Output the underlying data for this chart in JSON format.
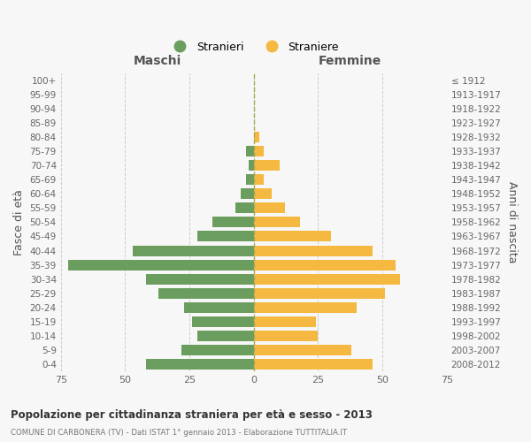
{
  "age_groups": [
    "0-4",
    "5-9",
    "10-14",
    "15-19",
    "20-24",
    "25-29",
    "30-34",
    "35-39",
    "40-44",
    "45-49",
    "50-54",
    "55-59",
    "60-64",
    "65-69",
    "70-74",
    "75-79",
    "80-84",
    "85-89",
    "90-94",
    "95-99",
    "100+"
  ],
  "birth_years": [
    "2008-2012",
    "2003-2007",
    "1998-2002",
    "1993-1997",
    "1988-1992",
    "1983-1987",
    "1978-1982",
    "1973-1977",
    "1968-1972",
    "1963-1967",
    "1958-1962",
    "1953-1957",
    "1948-1952",
    "1943-1947",
    "1938-1942",
    "1933-1937",
    "1928-1932",
    "1923-1927",
    "1918-1922",
    "1913-1917",
    "≤ 1912"
  ],
  "males": [
    42,
    28,
    22,
    24,
    27,
    37,
    42,
    72,
    47,
    22,
    16,
    7,
    5,
    3,
    2,
    3,
    0,
    0,
    0,
    0,
    0
  ],
  "females": [
    46,
    38,
    25,
    24,
    40,
    51,
    57,
    55,
    46,
    30,
    18,
    12,
    7,
    4,
    10,
    4,
    2,
    0,
    0,
    0,
    0
  ],
  "male_color": "#6b9e5e",
  "female_color": "#f5b942",
  "grid_color": "#cccccc",
  "title": "Popolazione per cittadinanza straniera per età e sesso - 2013",
  "subtitle": "COMUNE DI CARBONERA (TV) - Dati ISTAT 1° gennaio 2013 - Elaborazione TUTTITALIA.IT",
  "xlabel_left": "Maschi",
  "xlabel_right": "Femmine",
  "ylabel_left": "Fasce di età",
  "ylabel_right": "Anni di nascita",
  "legend_male": "Stranieri",
  "legend_female": "Straniere",
  "xlim": 75,
  "background_color": "#f7f7f7",
  "bar_height": 0.75
}
